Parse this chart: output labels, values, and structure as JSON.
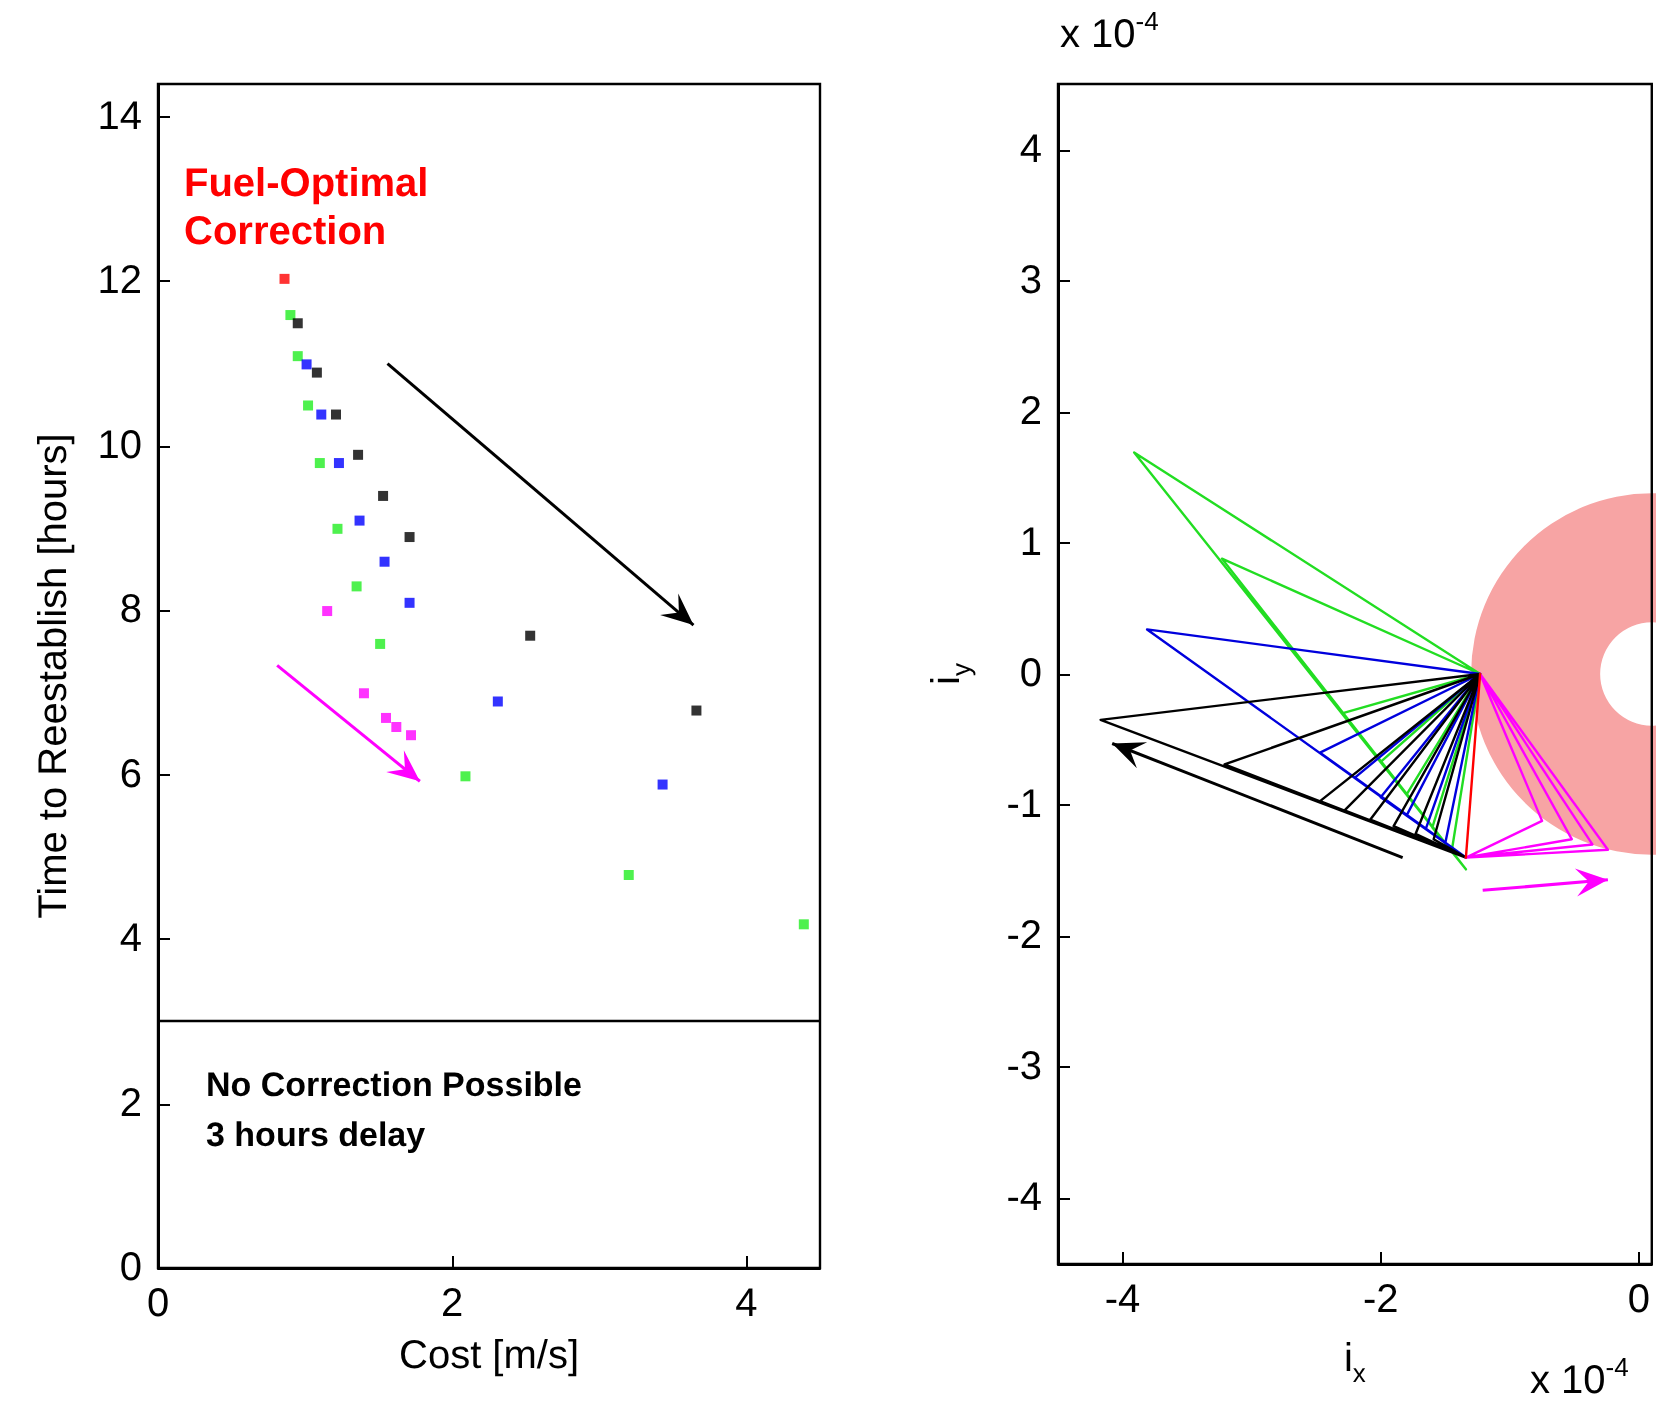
{
  "chart_data": [
    {
      "type": "scatter",
      "xlabel": "Cost [m/s]",
      "ylabel": "Time to Reestablish [hours]",
      "xlim": [
        0,
        4.5
      ],
      "xticks": [
        0,
        2,
        4
      ],
      "ylim": [
        0,
        14.4
      ],
      "yticks": [
        0,
        2,
        4,
        6,
        8,
        10,
        12,
        14
      ],
      "marker": "square",
      "series": [
        {
          "color": "#ff0000",
          "x": [
            0.86
          ],
          "values": [
            12.03
          ]
        },
        {
          "color": "#22ee22",
          "x": [
            0.9,
            0.95,
            1.02,
            1.1,
            1.22,
            1.35,
            1.51,
            2.09,
            3.2,
            4.39
          ],
          "values": [
            11.59,
            11.09,
            10.49,
            9.79,
            8.99,
            8.29,
            7.59,
            5.98,
            4.78,
            4.18
          ]
        },
        {
          "color": "#000000",
          "x": [
            0.95,
            1.08,
            1.21,
            1.36,
            1.53,
            1.71,
            2.53,
            3.66
          ],
          "values": [
            11.49,
            10.89,
            10.38,
            9.89,
            9.39,
            8.89,
            7.69,
            6.78
          ]
        },
        {
          "color": "#0000ff",
          "x": [
            1.01,
            1.11,
            1.23,
            1.37,
            1.54,
            1.71,
            2.31,
            3.43
          ],
          "values": [
            10.99,
            10.38,
            9.79,
            9.09,
            8.59,
            8.09,
            6.89,
            5.88
          ]
        },
        {
          "color": "#ff00ff",
          "x": [
            1.15,
            1.4,
            1.55,
            1.62,
            1.72
          ],
          "values": [
            7.99,
            6.99,
            6.69,
            6.58,
            6.48
          ]
        }
      ],
      "ref_lines": [
        {
          "axis": "y",
          "value": 3,
          "color": "#000000"
        }
      ],
      "annotations": [
        "Fuel-Optimal Correction",
        "No Correction Possible",
        "3 hours delay"
      ]
    },
    {
      "type": "line",
      "xlabel": "i$_{x}$",
      "ylabel": "i$_{y}$",
      "xlim": [
        -4.5,
        0.1
      ],
      "xticks": [
        -4,
        -2,
        0
      ],
      "ylim": [
        -4.5,
        4.5
      ],
      "yticks": [
        -4,
        -3,
        -2,
        -1,
        0,
        1,
        2,
        3,
        4
      ],
      "marker": "none",
      "series": [
        {
          "color": "#22dd22",
          "x": [
            -1.23,
            -3.91,
            -1.34,
            null,
            -1.23,
            -3.23,
            -1.34,
            null,
            -1.23,
            -2.3,
            -1.34,
            null,
            -1.23,
            -2.0,
            -1.34,
            null,
            -1.23,
            -1.8,
            -1.34,
            null,
            -1.23,
            -1.6,
            -1.34,
            null,
            -1.23,
            -1.45,
            -1.34
          ],
          "values": [
            0,
            1.69,
            -1.49,
            null,
            0,
            0.88,
            -1.49,
            null,
            0,
            -0.3,
            -1.49,
            null,
            0,
            -0.67,
            -1.49,
            null,
            0,
            -0.92,
            -1.49,
            null,
            0,
            -1.17,
            -1.49,
            null,
            0,
            -1.35,
            -1.49
          ]
        },
        {
          "color": "#0000dd",
          "x": [
            -1.23,
            -3.81,
            -1.34,
            null,
            -1.23,
            -2.47,
            -1.34,
            null,
            -1.23,
            -2.2,
            -1.34,
            null,
            -1.23,
            -2.0,
            -1.34,
            null,
            -1.23,
            -1.8,
            -1.34,
            null,
            -1.23,
            -1.65,
            -1.34,
            null,
            -1.23,
            -1.5,
            -1.34
          ],
          "values": [
            0,
            0.34,
            -1.4,
            null,
            0,
            -0.6,
            -1.4,
            null,
            0,
            -0.79,
            -1.4,
            null,
            0,
            -0.94,
            -1.4,
            null,
            0,
            -1.08,
            -1.4,
            null,
            0,
            -1.18,
            -1.4,
            null,
            0,
            -1.29,
            -1.4
          ]
        },
        {
          "color": "#000000",
          "x": [
            -1.23,
            -4.17,
            -1.34,
            null,
            -1.23,
            -3.21,
            -1.34,
            null,
            -1.23,
            -2.47,
            -1.34,
            null,
            -1.23,
            -2.28,
            -1.34,
            null,
            -1.23,
            -2.08,
            -1.34,
            null,
            -1.23,
            -1.9,
            -1.34,
            null,
            -1.23,
            -1.73,
            -1.34,
            null,
            -1.23,
            -1.59,
            -1.34
          ],
          "values": [
            0,
            -0.35,
            -1.4,
            null,
            0,
            -0.69,
            -1.4,
            null,
            0,
            -0.97,
            -1.4,
            null,
            0,
            -1.04,
            -1.4,
            null,
            0,
            -1.11,
            -1.4,
            null,
            0,
            -1.16,
            -1.4,
            null,
            0,
            -1.22,
            -1.4,
            null,
            0,
            -1.26,
            -1.4
          ]
        },
        {
          "color": "#ff00ff",
          "x": [
            -1.23,
            -0.75,
            -1.34,
            null,
            -1.23,
            -0.52,
            -1.34,
            null,
            -1.23,
            -0.36,
            -1.34,
            null,
            -1.23,
            -0.24,
            -1.34
          ],
          "values": [
            0,
            -1.12,
            -1.4,
            null,
            0,
            -1.26,
            -1.4,
            null,
            0,
            -1.3,
            -1.4,
            null,
            0,
            -1.34,
            -1.4
          ]
        },
        {
          "color": "#ff0000",
          "x": [
            -1.23,
            -1.34
          ],
          "values": [
            0,
            -1.4
          ]
        }
      ],
      "annotations": [
        "x 10$^{-4}$",
        "x 10$^{-4}$"
      ]
    }
  ]
}
